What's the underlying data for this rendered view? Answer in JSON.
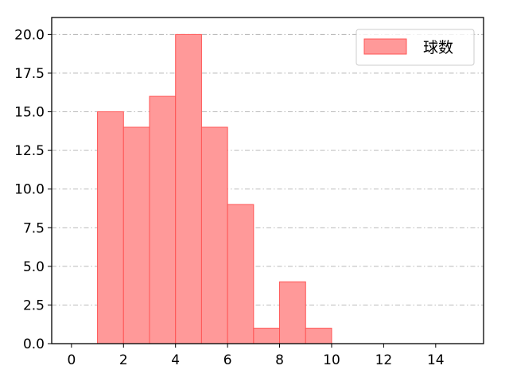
{
  "chart_data": {
    "type": "bar",
    "histogram": true,
    "bins": [
      [
        1,
        2
      ],
      [
        2,
        3
      ],
      [
        3,
        4
      ],
      [
        4,
        5
      ],
      [
        5,
        6
      ],
      [
        6,
        7
      ],
      [
        7,
        8
      ],
      [
        8,
        9
      ],
      [
        9,
        10
      ]
    ],
    "values": [
      15,
      14,
      16,
      20,
      14,
      9,
      1,
      4,
      1
    ],
    "series": [
      {
        "name": "球数",
        "values": [
          15,
          14,
          16,
          20,
          14,
          9,
          1,
          4,
          1
        ]
      }
    ],
    "xlim": [
      -0.76,
      15.84
    ],
    "ylim": [
      0,
      21.1
    ],
    "xticks": [
      0,
      2,
      4,
      6,
      8,
      10,
      12,
      14
    ],
    "xtick_labels": [
      "0",
      "2",
      "4",
      "6",
      "8",
      "10",
      "12",
      "14"
    ],
    "yticks": [
      0,
      2.5,
      5,
      7.5,
      10,
      12.5,
      15,
      17.5,
      20
    ],
    "ytick_labels": [
      "0.0",
      "2.5",
      "5.0",
      "7.5",
      "10.0",
      "12.5",
      "15.0",
      "17.5",
      "20.0"
    ],
    "grid": "y-dashdot",
    "legend": "top-right",
    "colors": {
      "bar_fill": "#ff9999",
      "bar_edge": "#ff5555",
      "grid": "#b0b0b0"
    }
  }
}
